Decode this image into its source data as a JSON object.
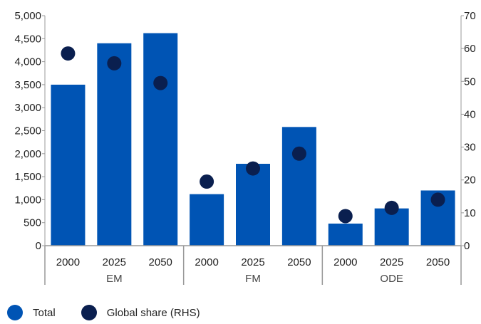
{
  "chart_data": {
    "type": "bar",
    "groups": [
      "EM",
      "FM",
      "ODE"
    ],
    "categories": [
      "2000",
      "2025",
      "2050",
      "2000",
      "2025",
      "2050",
      "2000",
      "2025",
      "2050"
    ],
    "series": [
      {
        "name": "Total",
        "type": "bar",
        "axis": "left",
        "color": "#0054B4",
        "values": [
          3500,
          4400,
          4620,
          1120,
          1780,
          2580,
          480,
          810,
          1200
        ]
      },
      {
        "name": "Global share (RHS)",
        "type": "scatter",
        "axis": "right",
        "color": "#0A1F4F",
        "values": [
          58.5,
          55.5,
          49.5,
          19.5,
          23.5,
          28,
          9,
          11.5,
          14
        ]
      }
    ],
    "left_axis": {
      "min": 0,
      "max": 5000,
      "ticks": [
        0,
        500,
        1000,
        1500,
        2000,
        2500,
        3000,
        3500,
        4000,
        4500,
        5000
      ],
      "tick_labels": [
        "0",
        "500",
        "1,000",
        "1,500",
        "2,000",
        "2,500",
        "3,000",
        "3,500",
        "4,000",
        "4,500",
        "5,000"
      ]
    },
    "right_axis": {
      "min": 0,
      "max": 70,
      "ticks": [
        0,
        10,
        20,
        30,
        40,
        50,
        60,
        70
      ],
      "tick_labels": [
        "0",
        "10",
        "20",
        "30",
        "40",
        "50",
        "60",
        "70"
      ]
    },
    "legend_position": "bottom-left",
    "grid": false
  },
  "legend": {
    "total_label": "Total",
    "share_label": "Global share (RHS)"
  }
}
